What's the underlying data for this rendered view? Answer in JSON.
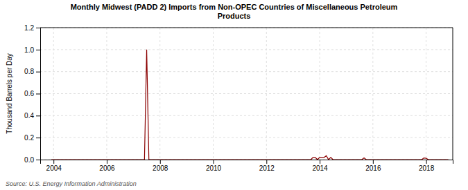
{
  "chart_data": {
    "type": "line",
    "title": "Monthly Midwest (PADD 2) Imports from Non-OPEC Countries of Miscellaneous Petroleum\nProducts",
    "y_label": "Thousand Barrels per Day",
    "annotations": [
      "Source: U.S. Energy Information Administration"
    ],
    "color": "#8b0000",
    "grid": true,
    "xlim": [
      2003.5,
      2019.0
    ],
    "ylim": [
      0.0,
      1.2
    ],
    "xticks": [
      2004,
      2006,
      2008,
      2010,
      2012,
      2014,
      2016,
      2018
    ],
    "yticks": [
      {
        "value": 0.0,
        "label": "0.0"
      },
      0.2,
      0.4,
      0.6,
      0.8,
      {
        "value": 1.0,
        "label": "1.0"
      },
      1.2
    ],
    "x": [
      2003.917,
      2004.0,
      2004.083,
      2004.167,
      2004.25,
      2004.333,
      2004.417,
      2004.5,
      2004.583,
      2004.667,
      2004.75,
      2004.833,
      2004.917,
      2005.0,
      2005.083,
      2005.167,
      2005.25,
      2005.333,
      2005.417,
      2005.5,
      2005.583,
      2005.667,
      2005.75,
      2005.833,
      2005.917,
      2006.0,
      2006.083,
      2006.167,
      2006.25,
      2006.333,
      2006.417,
      2006.5,
      2006.583,
      2006.667,
      2006.75,
      2006.833,
      2006.917,
      2007.0,
      2007.083,
      2007.167,
      2007.25,
      2007.333,
      2007.417,
      2007.5,
      2007.583,
      2007.667,
      2007.75,
      2007.833,
      2007.917,
      2008.0,
      2008.083,
      2008.167,
      2008.25,
      2008.333,
      2008.417,
      2008.5,
      2008.583,
      2008.667,
      2008.75,
      2008.833,
      2008.917,
      2009.0,
      2009.083,
      2009.167,
      2009.25,
      2009.333,
      2009.417,
      2009.5,
      2009.583,
      2009.667,
      2009.75,
      2009.833,
      2009.917,
      2010.0,
      2010.083,
      2010.167,
      2010.25,
      2010.333,
      2010.417,
      2010.5,
      2010.583,
      2010.667,
      2010.75,
      2010.833,
      2010.917,
      2011.0,
      2011.083,
      2011.167,
      2011.25,
      2011.333,
      2011.417,
      2011.5,
      2011.583,
      2011.667,
      2011.75,
      2011.833,
      2011.917,
      2012.0,
      2012.083,
      2012.167,
      2012.25,
      2012.333,
      2012.417,
      2012.5,
      2012.583,
      2012.667,
      2012.75,
      2012.833,
      2012.917,
      2013.0,
      2013.083,
      2013.167,
      2013.25,
      2013.333,
      2013.417,
      2013.5,
      2013.583,
      2013.667,
      2013.75,
      2013.833,
      2013.917,
      2014.0,
      2014.083,
      2014.167,
      2014.25,
      2014.333,
      2014.417,
      2014.5,
      2014.583,
      2014.667,
      2014.75,
      2014.833,
      2014.917,
      2015.0,
      2015.083,
      2015.167,
      2015.25,
      2015.333,
      2015.417,
      2015.5,
      2015.583,
      2015.667,
      2015.75,
      2015.833,
      2015.917,
      2016.0,
      2016.083,
      2016.167,
      2016.25,
      2016.333,
      2016.417,
      2016.5,
      2016.583,
      2016.667,
      2016.75,
      2016.833,
      2016.917,
      2017.0,
      2017.083,
      2017.167,
      2017.25,
      2017.333,
      2017.417,
      2017.5,
      2017.583,
      2017.667,
      2017.75,
      2017.833,
      2017.917,
      2018.0,
      2018.083,
      2018.167,
      2018.25,
      2018.333,
      2018.417,
      2018.5,
      2018.583,
      2018.667,
      2018.75,
      2018.833
    ],
    "values": [
      0.0,
      0.0,
      0.0,
      0.0,
      0.0,
      0.0,
      0.0,
      0.0,
      0.0,
      0.0,
      0.0,
      0.0,
      0.0,
      0.0,
      0.0,
      0.0,
      0.0,
      0.0,
      0.0,
      0.0,
      0.0,
      0.0,
      0.0,
      0.0,
      0.0,
      0.0,
      0.0,
      0.0,
      0.0,
      0.0,
      0.0,
      0.0,
      0.0,
      0.0,
      0.0,
      0.0,
      0.0,
      0.0,
      0.0,
      0.0,
      0.0,
      0.0,
      0.0,
      1.0,
      0.0,
      0.0,
      0.0,
      0.0,
      0.0,
      0.0,
      0.0,
      0.0,
      0.0,
      0.0,
      0.0,
      0.0,
      0.0,
      0.0,
      0.0,
      0.0,
      0.0,
      0.0,
      0.0,
      0.0,
      0.0,
      0.0,
      0.0,
      0.0,
      0.0,
      0.0,
      0.0,
      0.0,
      0.0,
      0.0,
      0.0,
      0.0,
      0.0,
      0.0,
      0.0,
      0.0,
      0.0,
      0.0,
      0.0,
      0.0,
      0.0,
      0.0,
      0.0,
      0.0,
      0.0,
      0.0,
      0.0,
      0.0,
      0.0,
      0.0,
      0.0,
      0.0,
      0.0,
      0.0,
      0.0,
      0.0,
      0.0,
      0.0,
      0.0,
      0.0,
      0.0,
      0.0,
      0.0,
      0.0,
      0.0,
      0.0,
      0.0,
      0.0,
      0.0,
      0.0,
      0.0,
      0.0,
      0.0,
      0.0,
      0.02,
      0.02,
      0.0,
      0.02,
      0.02,
      0.02,
      0.035,
      0.0,
      0.02,
      0.0,
      0.0,
      0.0,
      0.0,
      0.0,
      0.0,
      0.0,
      0.0,
      0.0,
      0.0,
      0.0,
      0.0,
      0.0,
      0.0,
      0.015,
      0.0,
      0.0,
      0.0,
      0.0,
      0.0,
      0.0,
      0.0,
      0.0,
      0.0,
      0.0,
      0.0,
      0.0,
      0.0,
      0.0,
      0.0,
      0.0,
      0.0,
      0.0,
      0.0,
      0.0,
      0.0,
      0.0,
      0.0,
      0.0,
      0.0,
      0.0,
      0.015,
      0.012,
      0.0,
      0.0,
      0.0,
      0.0,
      0.0,
      0.0,
      0.0,
      0.0,
      0.0,
      0.0
    ]
  }
}
